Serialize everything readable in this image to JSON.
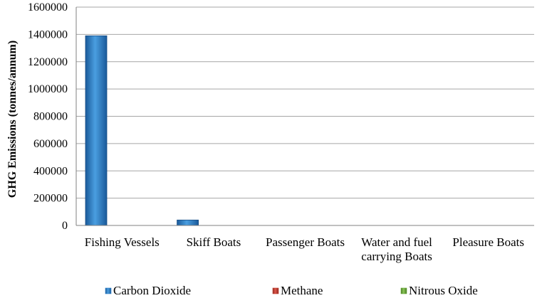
{
  "chart_data": {
    "type": "bar",
    "ylabel": "GHG Emissions (tonnes/annum)",
    "ylim": [
      0,
      1600000
    ],
    "yticks": [
      "0",
      "200000",
      "400000",
      "600000",
      "800000",
      "1000000",
      "1200000",
      "1400000",
      "1600000"
    ],
    "categories": [
      [
        "Fishing Vessels"
      ],
      [
        "Skiff Boats"
      ],
      [
        "Passenger Boats"
      ],
      [
        "Water and fuel",
        "carrying Boats"
      ],
      [
        "Pleasure Boats"
      ]
    ],
    "series": [
      {
        "name": "Carbon Dioxide",
        "color": "#2f7fc8",
        "values": [
          1390000,
          40000,
          0,
          0,
          0
        ]
      },
      {
        "name": "Methane",
        "color": "#c0392b",
        "values": [
          0,
          0,
          0,
          0,
          0
        ]
      },
      {
        "name": "Nitrous Oxide",
        "color": "#6aa83a",
        "values": [
          0,
          0,
          0,
          0,
          0
        ]
      }
    ],
    "grid": true,
    "legend": "bottom"
  }
}
